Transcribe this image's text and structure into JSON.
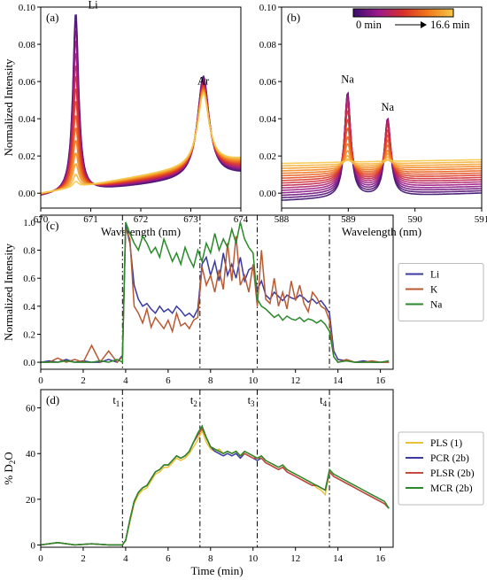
{
  "chart_data": [
    {
      "panel": "(a)",
      "type": "line",
      "xlabel": "Wavelength (nm)",
      "ylabel": "Normalized Intensity",
      "xlim": [
        670,
        674
      ],
      "ylim": [
        -0.008,
        0.1
      ],
      "xticks": [
        670,
        671,
        672,
        673,
        674
      ],
      "yticks": [
        0.0,
        0.02,
        0.04,
        0.06,
        0.08,
        0.1
      ],
      "ytick_labels": [
        "0.00",
        "0.02",
        "0.04",
        "0.06",
        "0.08",
        "0.10"
      ],
      "annotations": [
        "Li",
        "Ar"
      ],
      "peaks": [
        {
          "label": "Li",
          "x": 670.7,
          "width": 0.07,
          "heights": [
            0.097,
            0.093,
            0.088,
            0.082,
            0.075,
            0.068,
            0.062,
            0.055,
            0.048,
            0.04,
            0.033,
            0.026,
            0.019,
            0.013,
            0.007,
            0.003
          ]
        },
        {
          "label": "Ar",
          "x": 673.25,
          "width": 0.14,
          "heights": [
            0.055,
            0.054,
            0.053,
            0.052,
            0.05,
            0.049,
            0.048,
            0.047,
            0.046,
            0.045,
            0.044,
            0.043,
            0.042,
            0.041,
            0.04,
            0.039
          ]
        }
      ],
      "baseline": {
        "start": [
          -0.002,
          0.0
        ],
        "end": [
          0.01,
          0.018
        ]
      },
      "curves": 16
    },
    {
      "panel": "(b)",
      "type": "line",
      "xlabel": "Wavelength (nm)",
      "ylabel": "",
      "xlim": [
        588,
        591
      ],
      "ylim": [
        -0.008,
        0.1
      ],
      "xticks": [
        588,
        589,
        590,
        591
      ],
      "yticks": [
        0.0,
        0.02,
        0.04,
        0.06,
        0.08,
        0.1
      ],
      "ytick_labels": [
        "0.00",
        "0.02",
        "0.04",
        "0.06",
        "0.08",
        "0.10"
      ],
      "annotations": [
        "Na",
        "Na"
      ],
      "colorbar": {
        "min_label": "0 min",
        "max_label": "16.6 min"
      },
      "peaks": [
        {
          "label": "Na",
          "x": 588.99,
          "width": 0.055,
          "heights": [
            0.056,
            0.055,
            0.054,
            0.052,
            0.05,
            0.047,
            0.043,
            0.038,
            0.032,
            0.026,
            0.02,
            0.015,
            0.01,
            0.006,
            0.003,
            0.001
          ]
        },
        {
          "label": "Na",
          "x": 589.59,
          "width": 0.055,
          "heights": [
            0.041,
            0.04,
            0.039,
            0.038,
            0.036,
            0.034,
            0.031,
            0.027,
            0.023,
            0.019,
            0.015,
            0.011,
            0.008,
            0.005,
            0.002,
            0.001
          ]
        }
      ],
      "baseline": {
        "start": [
          -0.004,
          0.016
        ],
        "end": [
          0.0,
          0.018
        ]
      },
      "curves": 16
    },
    {
      "panel": "(c)",
      "type": "line",
      "xlabel": "",
      "ylabel": "Normalized Intensity",
      "xlim": [
        0,
        16.6
      ],
      "ylim": [
        -0.05,
        1.05
      ],
      "xticks": [
        0,
        2,
        4,
        6,
        8,
        10,
        12,
        14,
        16
      ],
      "yticks": [
        0.0,
        0.2,
        0.4,
        0.6,
        0.8,
        1.0
      ],
      "ytick_labels": [
        "0.0",
        "0.2",
        "0.4",
        "0.6",
        "0.8",
        "1.0"
      ],
      "vlines": [
        3.85,
        7.5,
        10.2,
        13.6
      ],
      "legend": "right",
      "x": [
        0,
        0.4,
        0.8,
        1.2,
        1.6,
        2.0,
        2.4,
        2.8,
        3.2,
        3.6,
        3.85,
        4.0,
        4.2,
        4.4,
        4.6,
        4.8,
        5.0,
        5.2,
        5.4,
        5.6,
        5.8,
        6.0,
        6.2,
        6.4,
        6.6,
        6.8,
        7.0,
        7.2,
        7.4,
        7.6,
        7.8,
        8.0,
        8.2,
        8.4,
        8.6,
        8.8,
        9.0,
        9.2,
        9.4,
        9.6,
        9.8,
        10.0,
        10.2,
        10.4,
        10.6,
        10.8,
        11.0,
        11.2,
        11.4,
        11.6,
        11.8,
        12.0,
        12.2,
        12.4,
        12.6,
        12.8,
        13.0,
        13.2,
        13.4,
        13.6,
        13.8,
        14.0,
        14.4,
        14.8,
        15.2,
        15.6,
        16.0,
        16.4
      ],
      "series": [
        {
          "name": "Li",
          "color": "#3a3aa0",
          "values": [
            0.0,
            0.01,
            0.0,
            0.02,
            0.0,
            0.01,
            0.0,
            0.0,
            0.02,
            0.0,
            0.05,
            0.98,
            0.85,
            0.55,
            0.45,
            0.4,
            0.42,
            0.38,
            0.35,
            0.4,
            0.36,
            0.38,
            0.35,
            0.4,
            0.37,
            0.33,
            0.35,
            0.32,
            0.38,
            0.7,
            0.75,
            0.62,
            0.72,
            0.58,
            0.78,
            0.62,
            0.7,
            0.6,
            0.75,
            0.58,
            0.66,
            0.68,
            0.52,
            0.58,
            0.48,
            0.45,
            0.5,
            0.47,
            0.44,
            0.48,
            0.46,
            0.45,
            0.48,
            0.46,
            0.43,
            0.45,
            0.42,
            0.44,
            0.4,
            0.35,
            0.08,
            0.02,
            0.01,
            0.0,
            0.01,
            0.0,
            0.0,
            0.0
          ]
        },
        {
          "name": "K",
          "color": "#b85a32",
          "values": [
            0.0,
            0.0,
            0.03,
            0.0,
            0.02,
            0.0,
            0.12,
            0.0,
            0.08,
            0.0,
            0.04,
            0.95,
            0.88,
            0.4,
            0.35,
            0.28,
            0.38,
            0.25,
            0.32,
            0.28,
            0.24,
            0.3,
            0.22,
            0.35,
            0.26,
            0.28,
            0.24,
            0.3,
            0.32,
            0.68,
            0.55,
            0.62,
            0.5,
            0.66,
            0.52,
            0.85,
            0.58,
            0.9,
            0.55,
            0.62,
            0.5,
            0.7,
            0.4,
            0.8,
            0.45,
            0.42,
            0.6,
            0.4,
            0.5,
            0.38,
            0.58,
            0.44,
            0.55,
            0.42,
            0.36,
            0.5,
            0.46,
            0.4,
            0.38,
            0.3,
            0.04,
            0.0,
            0.02,
            0.0,
            0.0,
            0.01,
            0.0,
            0.0
          ]
        },
        {
          "name": "Na",
          "color": "#2a8a2a",
          "values": [
            0.0,
            0.0,
            0.0,
            0.01,
            0.0,
            0.0,
            0.0,
            0.01,
            0.0,
            0.02,
            0.0,
            1.0,
            0.92,
            0.85,
            0.8,
            0.9,
            0.85,
            0.78,
            0.82,
            0.75,
            0.88,
            0.8,
            0.72,
            0.78,
            0.7,
            0.82,
            0.74,
            0.68,
            0.8,
            0.72,
            0.85,
            0.78,
            0.92,
            0.8,
            0.88,
            0.82,
            0.95,
            0.85,
            1.0,
            0.88,
            0.82,
            0.78,
            0.45,
            0.4,
            0.38,
            0.35,
            0.32,
            0.34,
            0.3,
            0.33,
            0.31,
            0.3,
            0.32,
            0.29,
            0.31,
            0.3,
            0.28,
            0.3,
            0.27,
            0.22,
            0.04,
            0.0,
            0.01,
            0.0,
            0.0,
            0.0,
            0.0,
            0.01
          ]
        }
      ]
    },
    {
      "panel": "(d)",
      "type": "line",
      "xlabel": "Time (min)",
      "ylabel": "% D",
      "ylabel_sub": "2",
      "ylabel_tail": "O",
      "xlim": [
        0,
        16.6
      ],
      "ylim": [
        -1,
        68
      ],
      "xticks": [
        0,
        2,
        4,
        6,
        8,
        10,
        12,
        14,
        16
      ],
      "yticks": [
        0,
        20,
        40,
        60
      ],
      "ytick_labels": [
        "0",
        "20",
        "40",
        "60"
      ],
      "vlines": [
        3.85,
        7.5,
        10.2,
        13.6
      ],
      "vline_labels": [
        {
          "text": "t",
          "sub": "1"
        },
        {
          "text": "t",
          "sub": "2"
        },
        {
          "text": "t",
          "sub": "3"
        },
        {
          "text": "t",
          "sub": "4"
        }
      ],
      "legend": "right",
      "x": [
        0,
        0.8,
        1.6,
        2.4,
        3.2,
        3.85,
        4.0,
        4.2,
        4.4,
        4.6,
        4.8,
        5.0,
        5.2,
        5.4,
        5.6,
        5.8,
        6.0,
        6.2,
        6.4,
        6.6,
        6.8,
        7.0,
        7.2,
        7.4,
        7.6,
        7.8,
        8.0,
        8.2,
        8.4,
        8.6,
        8.8,
        9.0,
        9.2,
        9.4,
        9.6,
        9.8,
        10.0,
        10.2,
        10.4,
        10.6,
        10.8,
        11.0,
        11.2,
        11.4,
        11.6,
        11.8,
        12.0,
        12.2,
        12.4,
        12.6,
        12.8,
        13.0,
        13.2,
        13.4,
        13.6,
        13.8,
        14.0,
        14.2,
        14.4,
        14.6,
        14.8,
        15.0,
        15.2,
        15.4,
        15.6,
        15.8,
        16.0,
        16.2,
        16.4
      ],
      "series": [
        {
          "name": "PLS (1)",
          "color": "#e8c33a",
          "values": [
            0,
            1,
            0,
            0.5,
            0,
            0,
            2,
            10,
            18,
            22,
            24,
            25,
            28,
            31,
            32,
            34,
            34,
            36,
            38,
            37,
            38,
            40,
            43,
            46,
            50,
            45,
            42,
            41,
            42,
            40,
            41,
            40,
            41,
            39,
            41,
            40,
            39,
            38,
            39,
            37,
            36,
            35,
            34,
            35,
            33,
            32,
            31,
            30,
            29,
            28,
            27,
            25,
            24,
            22,
            32,
            30,
            29,
            28,
            27,
            26,
            25,
            24,
            23,
            22,
            21,
            20,
            19,
            18,
            16
          ]
        },
        {
          "name": "PCR (2b)",
          "color": "#3a3aa0",
          "values": [
            0,
            1,
            0,
            0.5,
            0,
            0,
            2,
            11,
            19,
            23,
            25,
            26,
            29,
            32,
            33,
            35,
            35,
            37,
            39,
            38,
            39,
            41,
            45,
            48,
            52,
            47,
            43,
            41,
            40,
            39,
            40,
            39,
            40,
            38,
            40,
            39,
            38,
            37,
            38,
            36,
            35,
            34,
            33,
            34,
            32,
            31,
            30,
            29,
            28,
            27,
            26,
            26,
            25,
            24,
            32,
            30,
            29,
            28,
            27,
            26,
            25,
            24,
            23,
            22,
            21,
            20,
            19,
            18,
            16
          ]
        },
        {
          "name": "PLSR (2b)",
          "color": "#c84a3a",
          "values": [
            0,
            1,
            0,
            0.5,
            0,
            0,
            2,
            11,
            19,
            23,
            25,
            26,
            29,
            32,
            33,
            35,
            35,
            37,
            39,
            38,
            39,
            41,
            45,
            48,
            51,
            47,
            43,
            42,
            41,
            40,
            41,
            40,
            41,
            39,
            40,
            39,
            38,
            38,
            38,
            36,
            35,
            34,
            33,
            34,
            32,
            31,
            30,
            29,
            28,
            27,
            26,
            26,
            25,
            24,
            32,
            30,
            29,
            28,
            27,
            26,
            25,
            24,
            23,
            22,
            21,
            20,
            19,
            18,
            16
          ]
        },
        {
          "name": "MCR (2b)",
          "color": "#2a8a2a",
          "values": [
            0,
            1,
            0,
            0.5,
            0,
            0,
            2,
            11,
            19,
            23,
            25,
            26,
            29,
            32,
            33,
            35,
            35,
            37,
            39,
            38,
            39,
            41,
            45,
            49,
            52,
            47,
            43,
            42,
            41,
            40,
            41,
            40,
            41,
            39,
            41,
            40,
            39,
            38,
            39,
            37,
            36,
            35,
            34,
            35,
            33,
            32,
            31,
            30,
            29,
            28,
            27,
            26,
            25,
            24,
            33,
            31,
            30,
            29,
            28,
            27,
            26,
            25,
            24,
            23,
            22,
            21,
            20,
            19,
            16
          ]
        }
      ]
    }
  ]
}
